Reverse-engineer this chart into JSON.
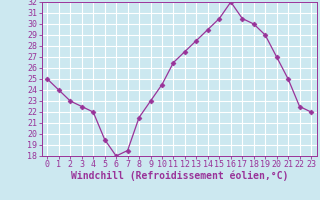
{
  "x": [
    0,
    1,
    2,
    3,
    4,
    5,
    6,
    7,
    8,
    9,
    10,
    11,
    12,
    13,
    14,
    15,
    16,
    17,
    18,
    19,
    20,
    21,
    22,
    23
  ],
  "y": [
    25.0,
    24.0,
    23.0,
    22.5,
    22.0,
    19.5,
    18.0,
    18.5,
    21.5,
    23.0,
    24.5,
    26.5,
    27.5,
    28.5,
    29.5,
    30.5,
    32.0,
    30.5,
    30.0,
    29.0,
    27.0,
    25.0,
    22.5,
    22.0
  ],
  "line_color": "#993399",
  "marker": "D",
  "marker_size": 2.5,
  "bg_color": "#cce8f0",
  "grid_color": "#ffffff",
  "xlabel": "Windchill (Refroidissement éolien,°C)",
  "tick_color": "#993399",
  "ylim": [
    18,
    32
  ],
  "xlim_min": -0.5,
  "xlim_max": 23.5,
  "yticks": [
    18,
    19,
    20,
    21,
    22,
    23,
    24,
    25,
    26,
    27,
    28,
    29,
    30,
    31,
    32
  ],
  "xticks": [
    0,
    1,
    2,
    3,
    4,
    5,
    6,
    7,
    8,
    9,
    10,
    11,
    12,
    13,
    14,
    15,
    16,
    17,
    18,
    19,
    20,
    21,
    22,
    23
  ],
  "font_size": 6,
  "xlabel_font_size": 7
}
